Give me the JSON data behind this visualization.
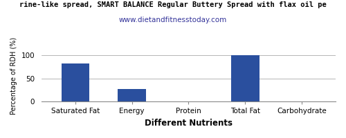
{
  "title": "rine-like spread, SMART BALANCE Regular Buttery Spread with flax oil pe",
  "subtitle": "www.dietandfitnesstoday.com",
  "xlabel": "Different Nutrients",
  "ylabel": "Percentage of RDH (%)",
  "categories": [
    "Saturated Fat",
    "Energy",
    "Protein",
    "Total Fat",
    "Carbohydrate"
  ],
  "values": [
    83,
    28,
    0.3,
    100,
    0.3
  ],
  "bar_color": "#2a4f9e",
  "ylim": [
    0,
    112
  ],
  "yticks": [
    0,
    50,
    100
  ],
  "background_color": "#ffffff",
  "title_fontsize": 7.5,
  "subtitle_fontsize": 7.5,
  "xlabel_fontsize": 8.5,
  "ylabel_fontsize": 7,
  "tick_fontsize": 7.5
}
